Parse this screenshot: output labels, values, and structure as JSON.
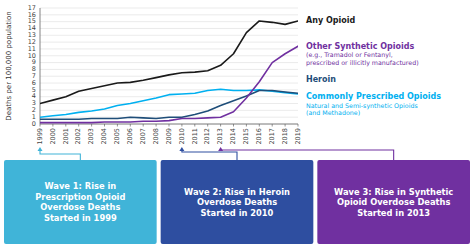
{
  "chart_data": {
    "type": "line",
    "x": [
      1999,
      2000,
      2001,
      2002,
      2003,
      2004,
      2005,
      2006,
      2007,
      2008,
      2009,
      2010,
      2011,
      2012,
      2013,
      2014,
      2015,
      2016,
      2017,
      2018,
      2019
    ],
    "series": [
      {
        "name": "Any Opioid",
        "color": "#1a1a1a",
        "values": [
          3.0,
          3.5,
          4.0,
          4.8,
          5.2,
          5.6,
          6.0,
          6.1,
          6.4,
          6.8,
          7.2,
          7.5,
          7.6,
          7.8,
          8.6,
          10.3,
          13.4,
          15.1,
          14.9,
          14.6,
          15.1
        ]
      },
      {
        "name": "Commonly Prescribed Opioids",
        "color": "#00b0f0",
        "note": "Natural and Semi-synthetic Opioids\n(and Methadone)",
        "values": [
          1.0,
          1.2,
          1.4,
          1.7,
          1.9,
          2.2,
          2.7,
          3.0,
          3.4,
          3.8,
          4.3,
          4.4,
          4.5,
          4.9,
          5.1,
          4.9,
          4.9,
          5.0,
          4.8,
          4.6,
          4.4
        ]
      },
      {
        "name": "Heroin",
        "color": "#1f4e79",
        "values": [
          0.7,
          0.7,
          0.7,
          0.7,
          0.8,
          0.8,
          0.8,
          1.0,
          0.9,
          0.8,
          1.0,
          1.0,
          1.4,
          1.9,
          2.7,
          3.4,
          4.1,
          4.9,
          4.9,
          4.7,
          4.5
        ]
      },
      {
        "name": "Other Synthetic Opioids",
        "color": "#7030a0",
        "note": "(e.g., Tramadol or Fentanyl,\nprescribed or illicitly manufactured)",
        "values": [
          0.2,
          0.2,
          0.2,
          0.2,
          0.2,
          0.3,
          0.3,
          0.3,
          0.4,
          0.4,
          0.5,
          0.8,
          0.8,
          0.9,
          1.0,
          1.8,
          3.8,
          6.2,
          9.0,
          10.3,
          11.4
        ]
      }
    ],
    "ylabel": "Deaths per 100,000 population",
    "xlim": [
      1999,
      2019
    ],
    "xticks": [
      1999,
      2000,
      2001,
      2002,
      2003,
      2004,
      2005,
      2006,
      2007,
      2008,
      2009,
      2010,
      2011,
      2012,
      2013,
      2014,
      2015,
      2016,
      2017,
      2018,
      2019
    ],
    "ylim": [
      0,
      17
    ],
    "yticks": [
      0,
      1,
      2,
      3,
      4,
      5,
      6,
      7,
      8,
      9,
      10,
      11,
      12,
      13,
      14,
      15,
      16,
      17
    ],
    "grid": true,
    "waves": [
      {
        "text": "Wave 1: Rise in\nPrescription Opioid\nOverdose Deaths\nStarted in 1999",
        "color": "#40b4d8",
        "x": 1999
      },
      {
        "text": "Wave 2: Rise in Heroin\nOverdose Deaths\nStarted in 2010",
        "color": "#2e4ea0",
        "x": 2010
      },
      {
        "text": "Wave 3: Rise in Synthetic\nOpioid Overdose Deaths\nStarted in 2013",
        "color": "#7030a0",
        "x": 2013
      }
    ]
  }
}
